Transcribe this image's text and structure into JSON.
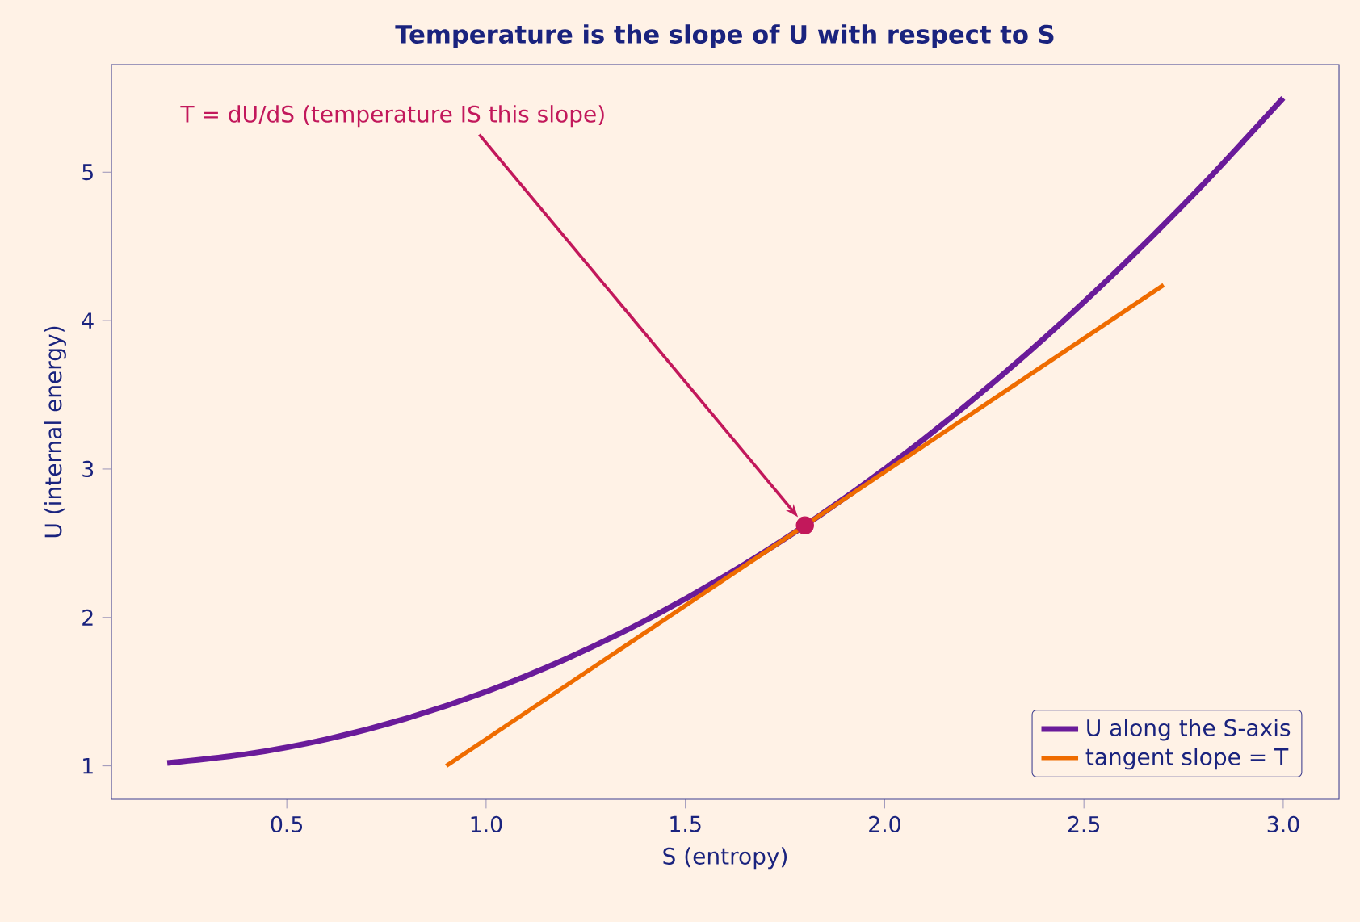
{
  "chart_data": {
    "type": "line",
    "title": "Temperature is the slope of U with respect to S",
    "xlabel": "S (entropy)",
    "ylabel": "U (internal energy)",
    "series": [
      {
        "name": "U along the S-axis",
        "color": "#6a1b9a",
        "x": [
          0.2,
          0.4,
          0.6,
          0.8,
          1.0,
          1.2,
          1.4,
          1.6,
          1.8,
          2.0,
          2.2,
          2.4,
          2.6,
          2.8,
          3.0
        ],
        "values": [
          1.02,
          1.08,
          1.18,
          1.32,
          1.5,
          1.72,
          1.98,
          2.28,
          2.62,
          3.0,
          3.42,
          3.88,
          4.38,
          4.92,
          5.5
        ]
      },
      {
        "name": "tangent slope = T",
        "color": "#ef6c00",
        "x": [
          0.9,
          2.7
        ],
        "values": [
          1.0,
          4.24
        ]
      },
      {
        "type": "scatter",
        "color": "#c2185b",
        "x": [
          1.8
        ],
        "values": [
          2.62
        ]
      }
    ],
    "annotations": [
      "T = dU/dS (temperature IS this slope)"
    ],
    "xlim": [
      0.06,
      3.14
    ],
    "ylim": [
      0.775,
      5.725
    ],
    "xticks": [
      0.5,
      {
        "value": 1,
        "label": "1.0"
      },
      1.5,
      {
        "value": 2,
        "label": "2.0"
      },
      2.5,
      {
        "value": 3,
        "label": "3.0"
      }
    ],
    "yticks": [
      1,
      2,
      3,
      4,
      5
    ],
    "grid": false,
    "legend": "bottom right"
  }
}
